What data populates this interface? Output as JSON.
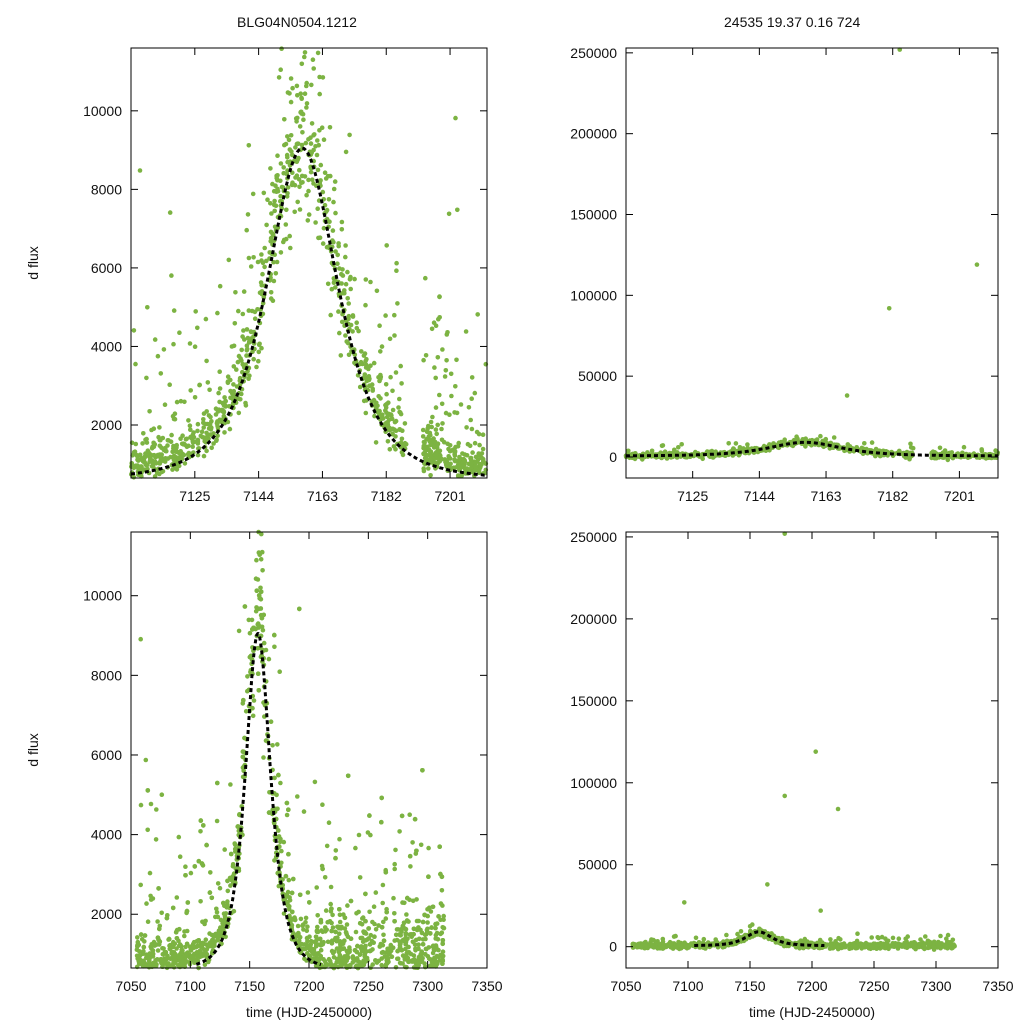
{
  "header": {
    "left_title": "BLG04N0504.1212",
    "right_title": "24535  19.37  0.16  724"
  },
  "colors": {
    "points": "#7cb342",
    "model": "#000000",
    "axis": "#000000"
  },
  "chart_data": [
    {
      "id": "top-left",
      "type": "scatter",
      "ylabel": "d flux",
      "xlabel": "",
      "xlim": [
        7106,
        7212
      ],
      "ylim": [
        650,
        11600
      ],
      "xticks": [
        7125,
        7144,
        7163,
        7182,
        7201
      ],
      "yticks": [
        2000,
        4000,
        6000,
        8000,
        10000
      ],
      "series": [
        {
          "name": "photometry",
          "kind": "points",
          "x_range": [
            7106,
            7212
          ],
          "n_points": 1200,
          "peak": 9500,
          "peak_t": 7157,
          "width": 10
        },
        {
          "name": "model",
          "kind": "curve",
          "t0": 7157,
          "baseline": 600,
          "amplitude": 8450,
          "width": 10
        }
      ]
    },
    {
      "id": "top-right",
      "type": "scatter",
      "ylabel": "",
      "xlabel": "",
      "xlim": [
        7106,
        7212
      ],
      "ylim": [
        -13000,
        253000
      ],
      "xticks": [
        7125,
        7144,
        7163,
        7182,
        7201
      ],
      "yticks": [
        0,
        50000,
        100000,
        150000,
        200000,
        250000
      ],
      "series": [
        {
          "name": "photometry",
          "kind": "points",
          "x_range": [
            7106,
            7212
          ],
          "n_points": 700,
          "outliers": [
            [
              7181,
              92000
            ],
            [
              7206,
              119000
            ],
            [
              7184,
              252000
            ],
            [
              7169,
              38000
            ]
          ]
        },
        {
          "name": "model",
          "kind": "curve",
          "t0": 7157,
          "baseline": 600,
          "amplitude": 8450,
          "width": 10
        }
      ]
    },
    {
      "id": "bottom-left",
      "type": "scatter",
      "ylabel": "d flux",
      "xlabel": "time (HJD-2450000)",
      "xlim": [
        7050,
        7350
      ],
      "ylim": [
        650,
        11600
      ],
      "xticks": [
        7050,
        7100,
        7150,
        7200,
        7250,
        7300,
        7350
      ],
      "yticks": [
        2000,
        4000,
        6000,
        8000,
        10000
      ],
      "series": [
        {
          "name": "photometry",
          "kind": "points",
          "x_range": [
            7055,
            7315
          ],
          "n_points": 1600,
          "peak": 10500,
          "peak_t": 7157,
          "width": 10
        },
        {
          "name": "model",
          "kind": "curve",
          "t0": 7157,
          "baseline": 600,
          "amplitude": 8450,
          "width": 10,
          "t_range": [
            7105,
            7210
          ]
        }
      ]
    },
    {
      "id": "bottom-right",
      "type": "scatter",
      "ylabel": "",
      "xlabel": "time (HJD-2450000)",
      "xlim": [
        7050,
        7350
      ],
      "ylim": [
        -13000,
        253000
      ],
      "xticks": [
        7050,
        7100,
        7150,
        7200,
        7250,
        7300,
        7350
      ],
      "yticks": [
        0,
        50000,
        100000,
        150000,
        200000,
        250000
      ],
      "series": [
        {
          "name": "photometry",
          "kind": "points",
          "x_range": [
            7055,
            7315
          ],
          "n_points": 900,
          "outliers": [
            [
              7178,
              92000
            ],
            [
              7203,
              119000
            ],
            [
              7221,
              84000
            ],
            [
              7178,
              252000
            ],
            [
              7164,
              38000
            ],
            [
              7207,
              22000
            ],
            [
              7097,
              27000
            ]
          ]
        },
        {
          "name": "model",
          "kind": "curve",
          "t0": 7157,
          "baseline": 600,
          "amplitude": 8450,
          "width": 10,
          "t_range": [
            7105,
            7210
          ]
        }
      ]
    }
  ]
}
